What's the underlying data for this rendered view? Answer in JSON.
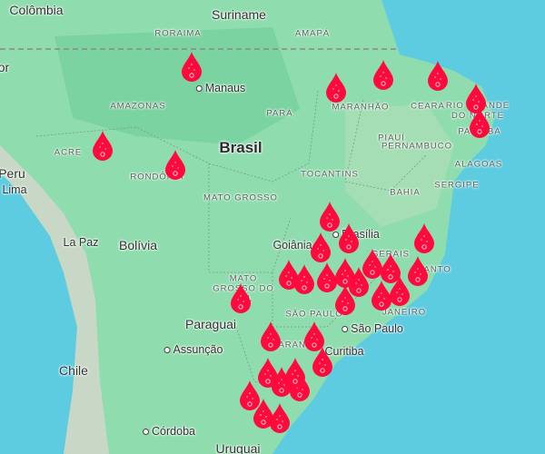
{
  "map": {
    "colors": {
      "ocean": "#5dcbe0",
      "land": "#8fdcae",
      "land_dark": "#6fcf9a",
      "marker": "#ff0a3c"
    },
    "marker_icon": "blood-drop-icon",
    "labels": {
      "countries": [
        "Colômbia",
        "Suriname",
        "Brasil",
        "Peru",
        "Bolívia",
        "Paraguai",
        "Chile",
        "Uruguai",
        "or"
      ],
      "states": [
        "RORAIMA",
        "AMAPÁ",
        "AMAZONAS",
        "PARÁ",
        "MARANHÃO",
        "CEARÁ",
        "RIO GRANDE DO NORTE",
        "PARAÍBA",
        "PIAUÍ",
        "PERNAMBUCO",
        "ALAGOAS",
        "SERGIPE",
        "ACRE",
        "RONDÔNIA",
        "TOCANTINS",
        "BAHIA",
        "MATO GROSSO",
        "MATO GROSSO DO SUL",
        "SÃO PAULO",
        "PARANÁ",
        "GERAIS",
        "SANTO",
        "JANEIRO"
      ],
      "cities": [
        "Manaus",
        "Lima",
        "La Paz",
        "Goiânia",
        "Brasília",
        "São Paulo",
        "Assunção",
        "Curitiba",
        "Córdoba"
      ]
    },
    "marker_count": 34
  }
}
